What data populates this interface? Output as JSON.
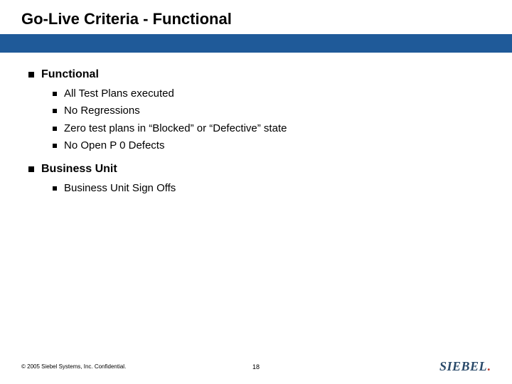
{
  "title": "Go-Live Criteria - Functional",
  "colors": {
    "blue_bar": "#1f5a99",
    "bullet": "#000000",
    "text": "#000000",
    "background": "#ffffff"
  },
  "sections": [
    {
      "heading": "Functional",
      "items": [
        "All Test Plans executed",
        "No Regressions",
        "Zero test plans in “Blocked” or “Defective” state",
        "No Open P 0 Defects"
      ]
    },
    {
      "heading": "Business Unit",
      "items": [
        "Business Unit Sign Offs"
      ]
    }
  ],
  "footer": {
    "copyright": "© 2005 Siebel Systems, Inc. Confidential.",
    "page_number": "18",
    "logo_text": "SIEBEL",
    "logo_dot": "."
  }
}
